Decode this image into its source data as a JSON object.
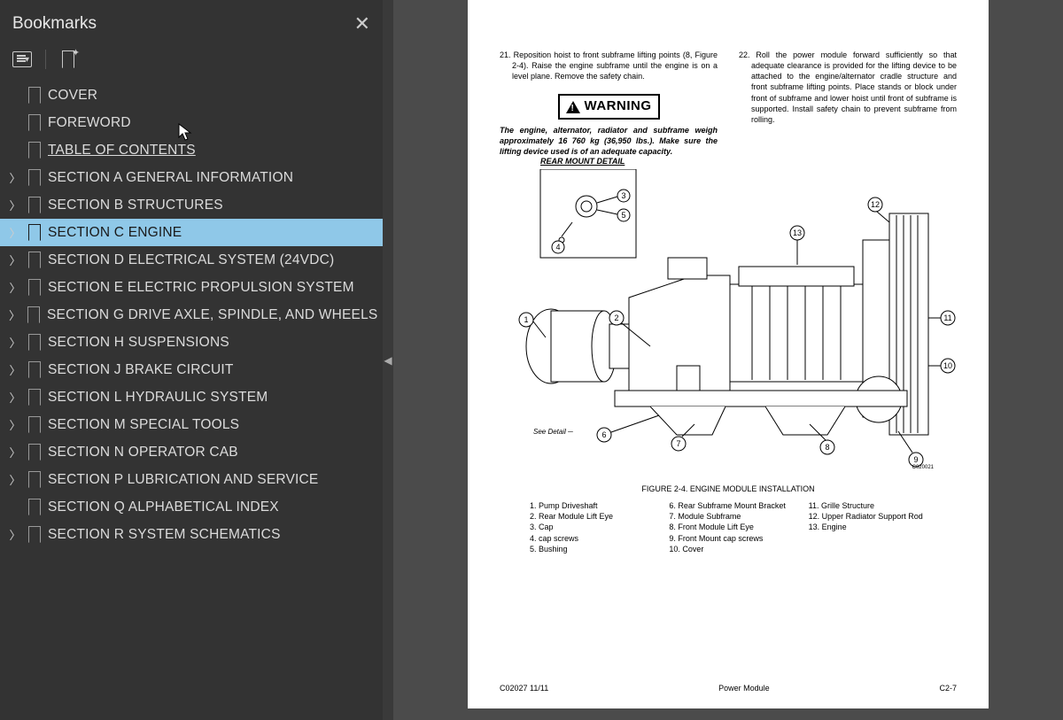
{
  "sidebar": {
    "title": "Bookmarks",
    "items": [
      {
        "label": "COVER",
        "expandable": false,
        "selected": false,
        "underline": false
      },
      {
        "label": "FOREWORD",
        "expandable": false,
        "selected": false,
        "underline": false
      },
      {
        "label": "TABLE OF CONTENTS ",
        "expandable": false,
        "selected": false,
        "underline": true
      },
      {
        "label": "SECTION A GENERAL INFORMATION",
        "expandable": true,
        "selected": false,
        "underline": false
      },
      {
        "label": "SECTION B STRUCTURES",
        "expandable": true,
        "selected": false,
        "underline": false
      },
      {
        "label": "SECTION C ENGINE",
        "expandable": true,
        "selected": true,
        "underline": false
      },
      {
        "label": "SECTION D ELECTRICAL SYSTEM (24VDC)",
        "expandable": true,
        "selected": false,
        "underline": false
      },
      {
        "label": "SECTION E ELECTRIC PROPULSION SYSTEM",
        "expandable": true,
        "selected": false,
        "underline": false
      },
      {
        "label": "SECTION G DRIVE AXLE, SPINDLE, AND WHEELS",
        "expandable": true,
        "selected": false,
        "underline": false
      },
      {
        "label": "SECTION H SUSPENSIONS",
        "expandable": true,
        "selected": false,
        "underline": false
      },
      {
        "label": "SECTION J BRAKE CIRCUIT",
        "expandable": true,
        "selected": false,
        "underline": false
      },
      {
        "label": "SECTION L  HYDRAULIC SYSTEM",
        "expandable": true,
        "selected": false,
        "underline": false
      },
      {
        "label": "SECTION M SPECIAL TOOLS",
        "expandable": true,
        "selected": false,
        "underline": false
      },
      {
        "label": "SECTION N OPERATOR CAB",
        "expandable": true,
        "selected": false,
        "underline": false
      },
      {
        "label": "SECTION P LUBRICATION AND SERVICE",
        "expandable": true,
        "selected": false,
        "underline": false
      },
      {
        "label": "SECTION Q ALPHABETICAL INDEX",
        "expandable": false,
        "selected": false,
        "underline": false
      },
      {
        "label": "SECTION R SYSTEM SCHEMATICS",
        "expandable": true,
        "selected": false,
        "underline": false
      }
    ]
  },
  "document": {
    "step21": "21. Reposition hoist to front subframe lifting points (8, Figure 2-4). Raise the engine subframe until the engine is on a level plane. Remove the safety chain.",
    "warning_label": "WARNING",
    "warning_text": "The engine, alternator, radiator and subframe weigh approximately 16 760 kg (36,950 lbs.). Make sure the lifting device used is of an adequate capacity.",
    "step22": "22. Roll the power module forward sufficiently so that adequate clearance is provided for the lifting device to be attached to the engine/alternator cradle structure and front subframe lifting points. Place stands or block under front of subframe and lower hoist until front of subframe is supported. Install safety chain to prevent subframe from rolling.",
    "detail_title": "REAR MOUNT DETAIL",
    "see_detail": "See Detail",
    "figure_caption": "FIGURE 2-4. ENGINE MODULE INSTALLATION",
    "callouts": [
      "1",
      "2",
      "3",
      "4",
      "5",
      "6",
      "7",
      "8",
      "9",
      "10",
      "11",
      "12",
      "13"
    ],
    "parts": [
      [
        "1. Pump Driveshaft",
        "2. Rear Module Lift Eye",
        "3. Cap",
        "4. cap screws",
        "5. Bushing"
      ],
      [
        "6. Rear Subframe Mount Bracket",
        "7. Module Subframe",
        "8. Front Module Lift Eye",
        "9. Front Mount cap screws",
        "10. Cover"
      ],
      [
        "11. Grille Structure",
        "12. Upper Radiator Support Rod",
        "13. Engine"
      ]
    ],
    "footer_left": "C02027  11/11",
    "footer_center": "Power Module",
    "footer_right": "C2-7",
    "fig_code": "C020021"
  },
  "colors": {
    "sidebar_bg": "#333333",
    "selected_bg": "#8fc8e8",
    "doc_bg": "#4b4b4b",
    "page_bg": "#ffffff"
  }
}
